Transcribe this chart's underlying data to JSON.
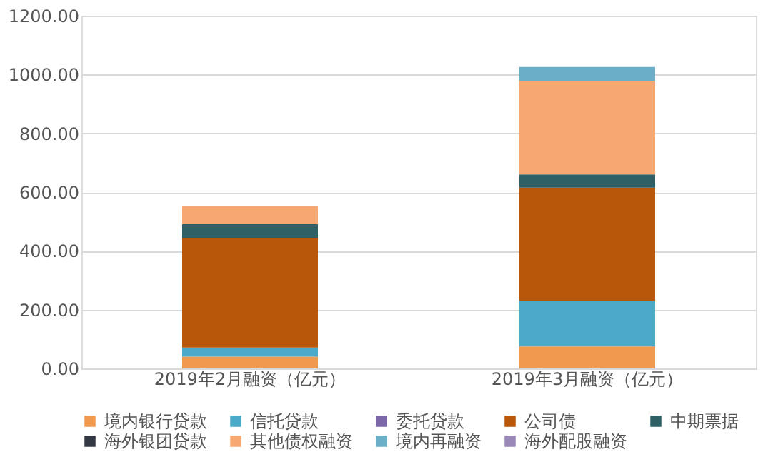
{
  "chart_data": {
    "type": "bar",
    "stacked": true,
    "categories": [
      "2019年2月融资（亿元）",
      "2019年3月融资（亿元）"
    ],
    "series": [
      {
        "name": "境内银行贷款",
        "color": "#f09a50",
        "values": [
          40,
          75
        ]
      },
      {
        "name": "信托贷款",
        "color": "#4aaac8",
        "values": [
          31,
          156
        ]
      },
      {
        "name": "委托贷款",
        "color": "#7a68a8",
        "values": [
          0,
          0
        ]
      },
      {
        "name": "公司债",
        "color": "#b8560a",
        "values": [
          371,
          384
        ]
      },
      {
        "name": "中期票据",
        "color": "#2e6066",
        "values": [
          49,
          45
        ]
      },
      {
        "name": "海外银团贷款",
        "color": "#333844",
        "values": [
          0,
          0
        ]
      },
      {
        "name": "其他债权融资",
        "color": "#f7a870",
        "values": [
          62,
          319
        ]
      },
      {
        "name": "境内再融资",
        "color": "#6aaec8",
        "values": [
          0,
          47
        ]
      },
      {
        "name": "海外配股融资",
        "color": "#9a88b8",
        "values": [
          0,
          0
        ]
      }
    ],
    "ylim": [
      0,
      1200
    ],
    "yticks": [
      {
        "value": 0,
        "label": "0.00"
      },
      {
        "value": 200,
        "label": "200.00"
      },
      {
        "value": 400,
        "label": "400.00"
      },
      {
        "value": 600,
        "label": "600.00"
      },
      {
        "value": 800,
        "label": "800.00"
      },
      {
        "value": 1000,
        "label": "1000.00"
      },
      {
        "value": 1200,
        "label": "1200.00"
      }
    ],
    "grid": "y",
    "legend": "bottom"
  }
}
